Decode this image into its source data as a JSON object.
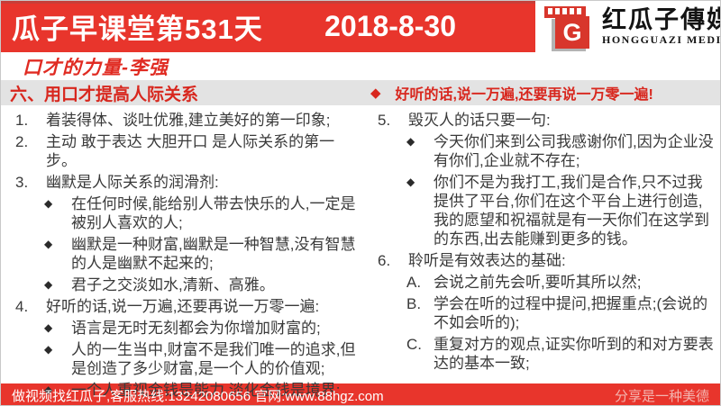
{
  "header": {
    "title": "瓜子早课堂第531天",
    "date": "2018-8-30",
    "logo": {
      "letter": "G",
      "name_cn": "红瓜子傳媒",
      "name_en": "HONGGUAZI MEDIA"
    }
  },
  "subtitle": "口才的力量-李强",
  "section": {
    "left_heading": "六、用口才提高人际关系",
    "bullet": "◆",
    "right_heading": "好听的话,说一万遍,还要再说一万零一遍!"
  },
  "columns": [
    {
      "items": [
        {
          "marker": "1.",
          "text": "着装得体、谈吐优雅,建立美好的第一印象;",
          "subs": []
        },
        {
          "marker": "2.",
          "text": "主动 敢于表达 大胆开口 是人际关系的第一步。",
          "subs": []
        },
        {
          "marker": "3.",
          "text": "幽默是人际关系的润滑剂:",
          "subs": [
            {
              "marker": "◆",
              "text": "在任何时候,能给别人带去快乐的人,一定是被别人喜欢的人;"
            },
            {
              "marker": "◆",
              "text": "幽默是一种财富,幽默是一种智慧,没有智慧的人是幽默不起来的;"
            },
            {
              "marker": "◆",
              "text": "君子之交淡如水,清新、高雅。"
            }
          ]
        },
        {
          "marker": "4.",
          "text": "好听的话,说一万遍,还要再说一万零一遍:",
          "subs": [
            {
              "marker": "◆",
              "text": "语言是无时无刻都会为你增加财富的;"
            },
            {
              "marker": "◆",
              "text": "人的一生当中,财富不是我们唯一的追求,但是创造了多少财富,是一个人的价值观;"
            },
            {
              "marker": "◆",
              "text": "一个人重视金钱是能力,淡化金钱是境界;"
            }
          ]
        }
      ]
    },
    {
      "items": [
        {
          "marker": "5.",
          "text": "毁灭人的话只要一句:",
          "subs": [
            {
              "marker": "◆",
              "text": "今天你们来到公司我感谢你们,因为企业没有你们,企业就不存在;"
            },
            {
              "marker": "◆",
              "text": "你们不是为我打工,我们是合作,只不过我提供了平台,你们在这个平台上进行创造,我的愿望和祝福就是有一天你们在这学到的东西,出去能赚到更多的钱。"
            }
          ]
        },
        {
          "marker": "6.",
          "text": "聆听是有效表达的基础:",
          "subs": [
            {
              "marker": "A.",
              "text": "会说之前先会听,要听其所以然;"
            },
            {
              "marker": "B.",
              "text": "学会在听的过程中提问,把握重点;(会说的不如会听的);"
            },
            {
              "marker": "C.",
              "text": "重复对方的观点,证实你听到的和对方要表达的基本一致;"
            }
          ]
        }
      ]
    }
  ],
  "footer": {
    "contact": "做视频找红瓜子,客服热线:13242080656 官网:www.88hgz.com",
    "slogan": "分享是一种美德"
  },
  "colors": {
    "banner_red": "#e8352c",
    "logo_red": "#d8362c",
    "heading_red": "#d8271e",
    "strip_gray": "#e3e3e3",
    "body_text": "#3a3a3a",
    "slogan_pink": "#f3b5b0"
  }
}
